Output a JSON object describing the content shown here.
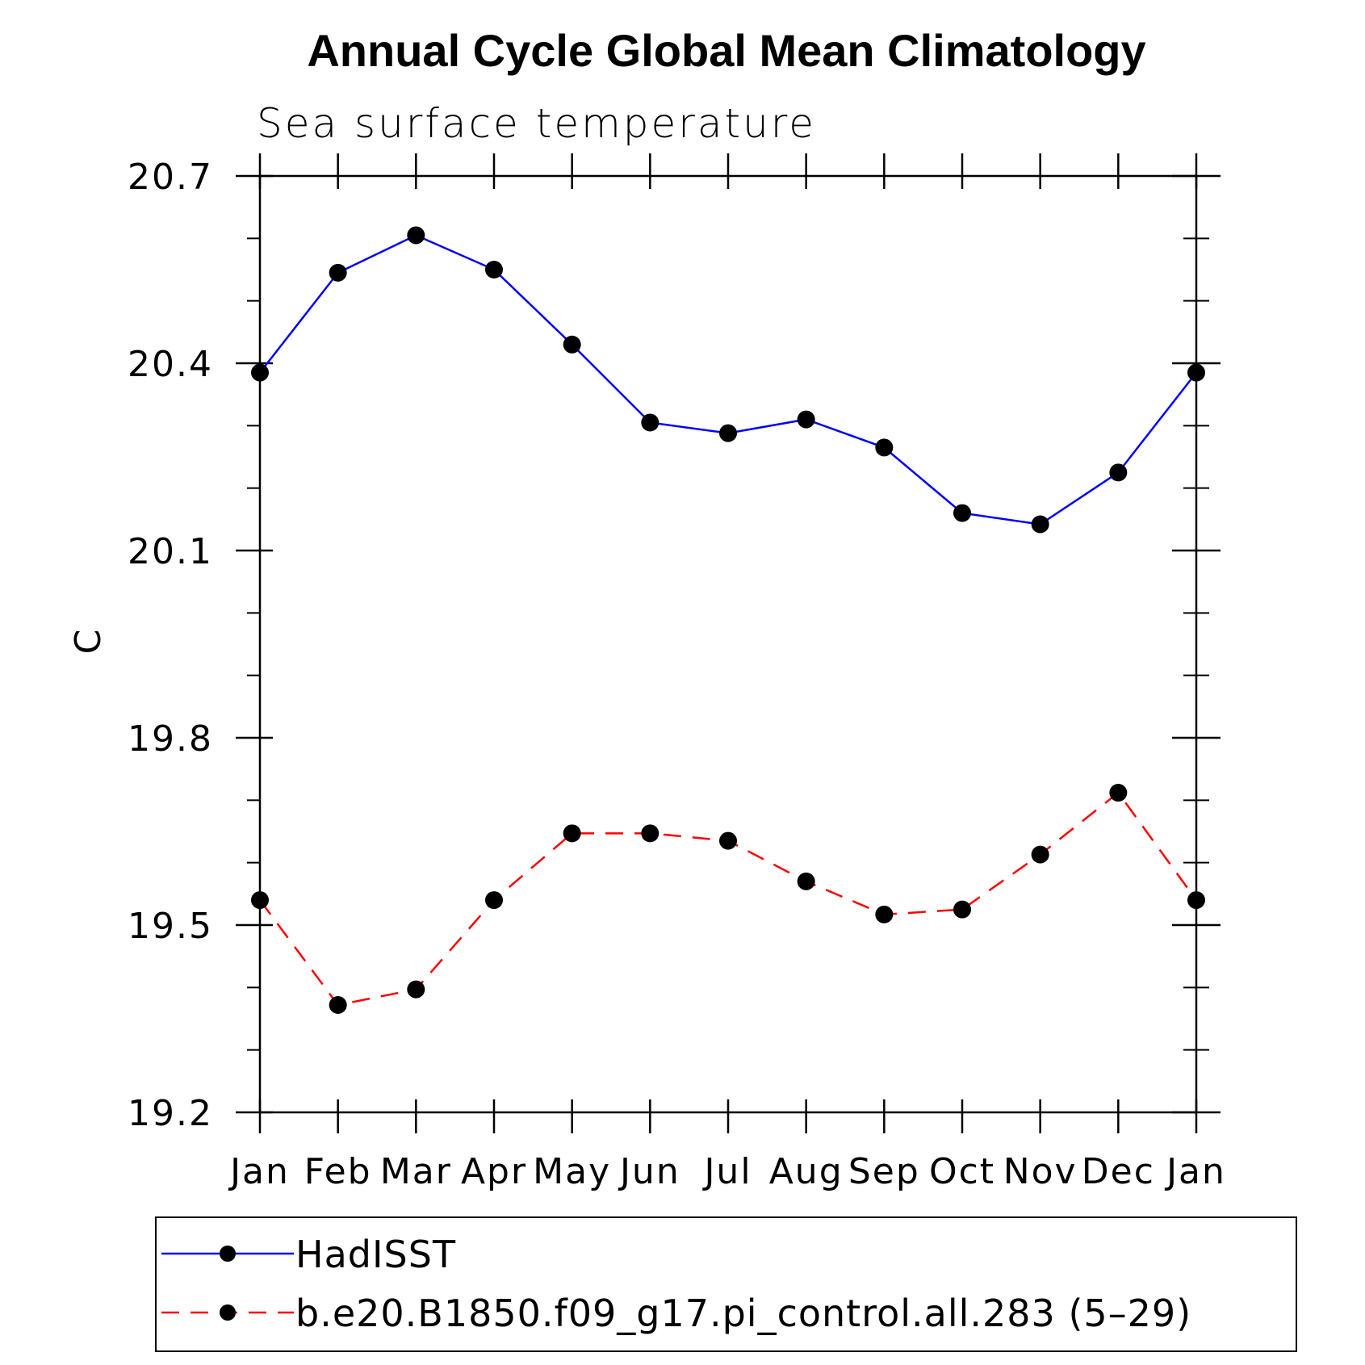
{
  "chart_data": {
    "type": "line",
    "title": "Annual Cycle Global Mean Climatology",
    "subtitle": "Sea surface temperature",
    "xlabel": "",
    "ylabel": "C",
    "categories": [
      "Jan",
      "Feb",
      "Mar",
      "Apr",
      "May",
      "Jun",
      "Jul",
      "Aug",
      "Sep",
      "Oct",
      "Nov",
      "Dec",
      "Jan"
    ],
    "ylim": [
      19.2,
      20.7
    ],
    "yticks": [
      "19.2",
      "19.5",
      "19.8",
      "20.1",
      "20.4",
      "20.7"
    ],
    "ytick_values": [
      19.2,
      19.5,
      19.8,
      20.1,
      20.4,
      20.7
    ],
    "minor_step": 0.1,
    "grid": false,
    "legend_position": "bottom",
    "series": [
      {
        "name": "HadISST",
        "color": "#0000ff",
        "dash": "solid",
        "marker": "filled-circle",
        "values": [
          20.385,
          20.545,
          20.605,
          20.55,
          20.43,
          20.305,
          20.288,
          20.31,
          20.265,
          20.16,
          20.142,
          20.225,
          20.385
        ]
      },
      {
        "name": "b.e20.B1850.f09_g17.pi_control.all.283 (5–29)",
        "color": "#ff0000",
        "dash": "dashed",
        "marker": "filled-circle",
        "values": [
          19.54,
          19.372,
          19.397,
          19.54,
          19.647,
          19.647,
          19.635,
          19.57,
          19.517,
          19.525,
          19.613,
          19.712,
          19.54
        ]
      }
    ]
  }
}
